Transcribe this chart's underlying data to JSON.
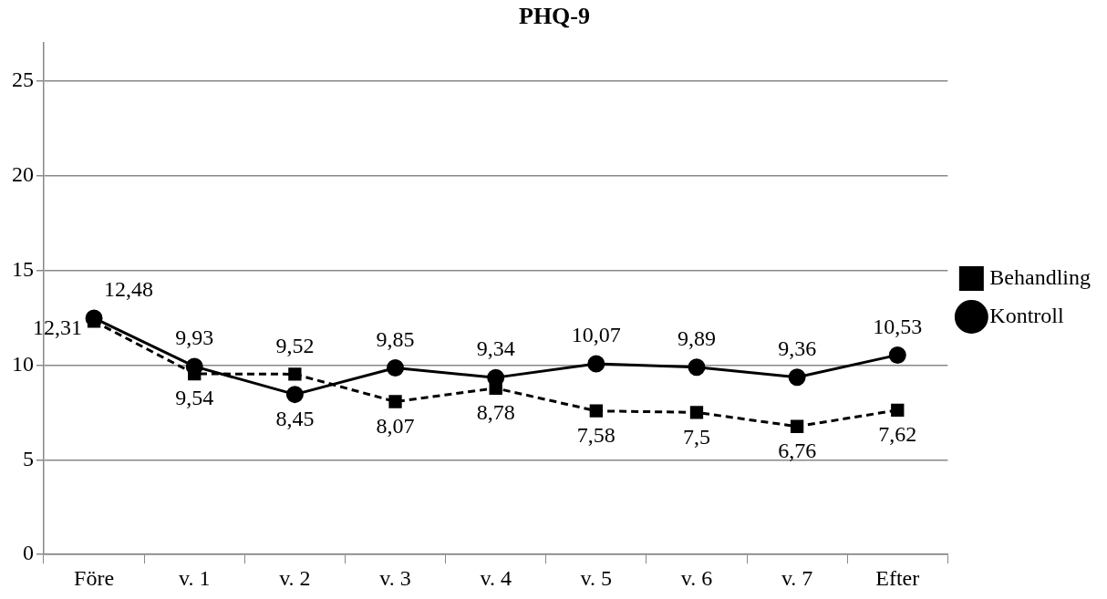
{
  "chart_data": {
    "type": "line",
    "title": "PHQ-9",
    "categories": [
      "Före",
      "v. 1",
      "v. 2",
      "v. 3",
      "v. 4",
      "v. 5",
      "v. 6",
      "v. 7",
      "Efter"
    ],
    "series": [
      {
        "name": "Behandling",
        "color": "#000000",
        "marker": "square",
        "line_style": "dashed",
        "values": [
          12.31,
          9.54,
          9.52,
          8.07,
          8.78,
          7.58,
          7.5,
          6.76,
          7.62
        ],
        "value_labels": [
          "12,31",
          "9,54",
          "9,52",
          "8,07",
          "8,78",
          "7,58",
          "7,5",
          "6,76",
          "7,62"
        ]
      },
      {
        "name": "Kontroll",
        "color": "#000000",
        "marker": "circle",
        "line_style": "solid",
        "values": [
          12.48,
          9.93,
          8.45,
          9.85,
          9.34,
          10.07,
          9.89,
          9.36,
          10.53
        ],
        "value_labels": [
          "12,48",
          "9,93",
          "8,45",
          "9,85",
          "9,34",
          "10,07",
          "9,89",
          "9,36",
          "10,53"
        ]
      }
    ],
    "ylim": [
      0,
      27
    ],
    "yticks": [
      0,
      5,
      10,
      15,
      20,
      25
    ],
    "grid": "y",
    "legend": "right"
  }
}
